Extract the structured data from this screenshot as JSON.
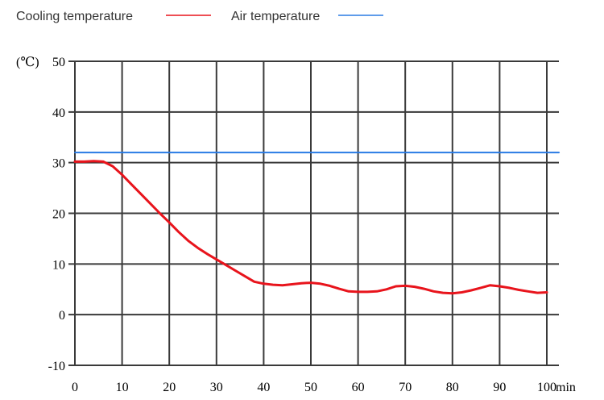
{
  "chart_data": {
    "type": "line",
    "x_unit": "min",
    "y_unit": "(℃)",
    "xlim": [
      0,
      100
    ],
    "ylim": [
      -10,
      50
    ],
    "x_ticks": [
      0,
      10,
      20,
      30,
      40,
      50,
      60,
      70,
      80,
      90,
      100
    ],
    "y_ticks": [
      -10,
      0,
      10,
      20,
      30,
      40,
      50
    ],
    "x_tick_labels": [
      "0",
      "10",
      "20",
      "30",
      "40",
      "50",
      "60",
      "70",
      "80",
      "90",
      "100"
    ],
    "y_tick_labels": [
      "-10",
      "0",
      "10",
      "20",
      "30",
      "40",
      "50"
    ],
    "grid": true,
    "legend_position": "top-left",
    "series": [
      {
        "name": "Cooling temperature",
        "color": "#e8141c",
        "x": [
          0,
          2,
          4,
          6,
          8,
          10,
          12,
          14,
          16,
          18,
          20,
          22,
          24,
          26,
          28,
          30,
          32,
          34,
          36,
          38,
          40,
          42,
          44,
          46,
          48,
          50,
          52,
          54,
          56,
          58,
          60,
          62,
          64,
          66,
          68,
          70,
          72,
          74,
          76,
          78,
          80,
          82,
          84,
          86,
          88,
          90,
          92,
          94,
          96,
          98,
          100
        ],
        "values": [
          30.2,
          30.2,
          30.3,
          30.2,
          29.3,
          27.6,
          25.7,
          23.8,
          21.9,
          20.0,
          18.2,
          16.3,
          14.6,
          13.2,
          12.0,
          10.9,
          9.8,
          8.7,
          7.6,
          6.5,
          6.1,
          5.9,
          5.8,
          6.0,
          6.2,
          6.3,
          6.1,
          5.7,
          5.1,
          4.6,
          4.5,
          4.5,
          4.6,
          5.0,
          5.6,
          5.7,
          5.5,
          5.1,
          4.6,
          4.3,
          4.2,
          4.4,
          4.8,
          5.3,
          5.8,
          5.6,
          5.3,
          4.9,
          4.6,
          4.3,
          4.4
        ]
      },
      {
        "name": "Air temperature",
        "color": "#2a7be4",
        "x": [
          0,
          103
        ],
        "values": [
          32,
          32
        ]
      }
    ]
  }
}
